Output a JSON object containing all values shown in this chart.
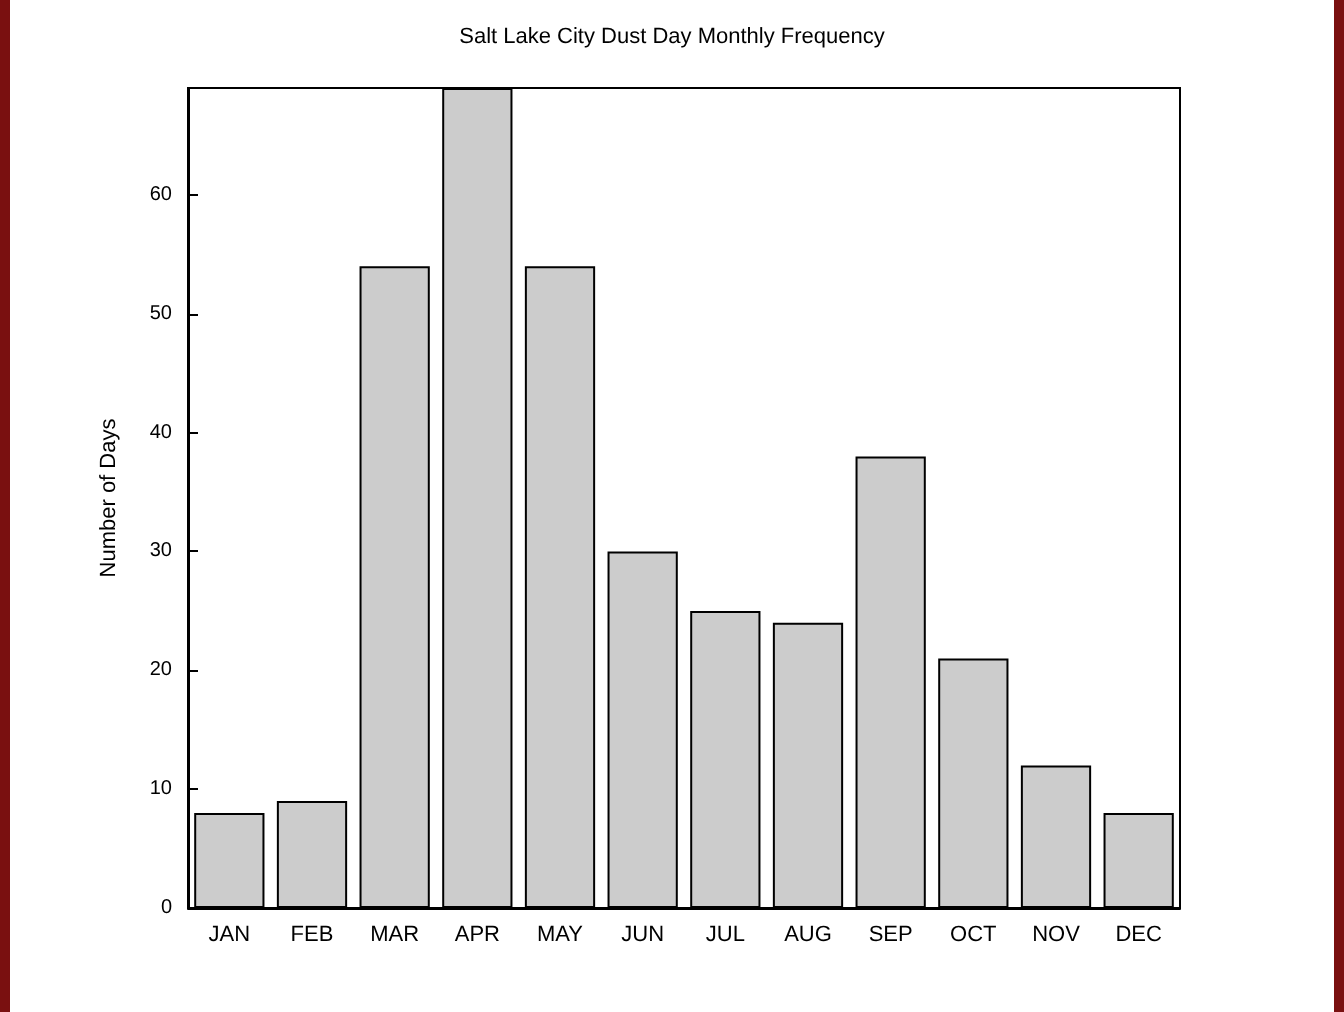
{
  "chart_data": {
    "type": "bar",
    "title": "Salt Lake City Dust Day Monthly Frequency",
    "ylabel": "Number of Days",
    "categories": [
      "JAN",
      "FEB",
      "MAR",
      "APR",
      "MAY",
      "JUN",
      "JUL",
      "AUG",
      "SEP",
      "OCT",
      "NOV",
      "DEC"
    ],
    "values": [
      8,
      9,
      54,
      69,
      54,
      30,
      25,
      24,
      38,
      21,
      12,
      8
    ],
    "color": "#cccccc",
    "ylim": [
      0,
      69
    ],
    "yticks": [
      0,
      10,
      20,
      30,
      40,
      50,
      60
    ],
    "grid": false
  }
}
